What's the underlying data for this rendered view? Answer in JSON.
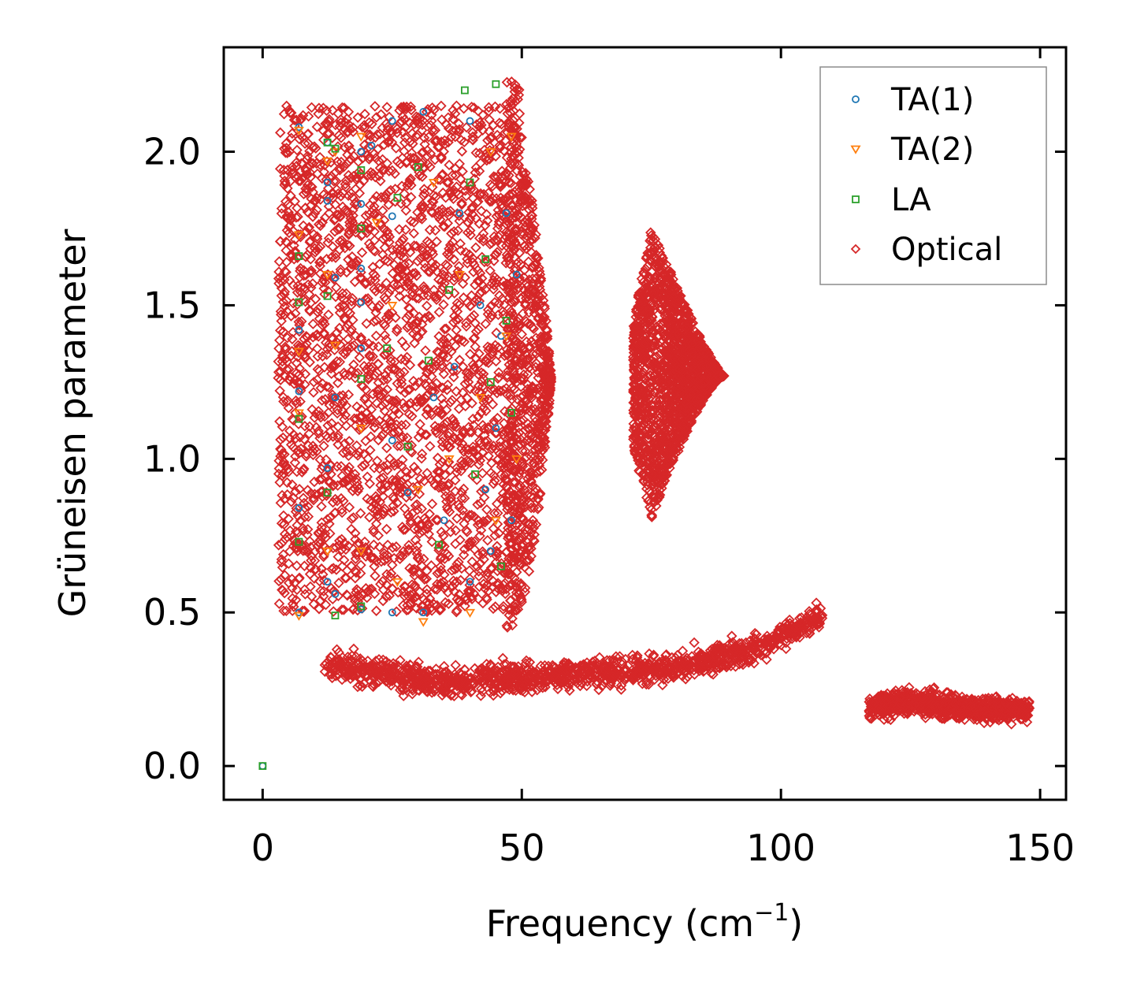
{
  "chart_data": {
    "type": "scatter",
    "title": "",
    "xlabel": "Frequency (cm",
    "xlabel_sup": "−1",
    "xlabel_end": ")",
    "ylabel": "Grüneisen parameter",
    "xlim": [
      -7.5,
      155
    ],
    "ylim": [
      -0.11,
      2.34
    ],
    "xticks": [
      0,
      50,
      100,
      150
    ],
    "xtick_labels": [
      "0",
      "50",
      "100",
      "150"
    ],
    "yticks": [
      0.0,
      0.5,
      1.0,
      1.5,
      2.0
    ],
    "ytick_labels": [
      "0.0",
      "0.5",
      "1.0",
      "1.5",
      "2.0"
    ],
    "grid": false,
    "legend_position": "top-right",
    "series": [
      {
        "name": "TA(1)",
        "marker": "circle",
        "color": "#1f77b4",
        "points": [
          [
            0,
            0
          ],
          [
            7,
            2.08
          ],
          [
            7,
            1.42
          ],
          [
            7,
            1.22
          ],
          [
            7,
            0.84
          ],
          [
            7,
            0.5
          ],
          [
            12.5,
            2.03
          ],
          [
            12.5,
            1.9
          ],
          [
            12.5,
            1.84
          ],
          [
            12.5,
            0.97
          ],
          [
            12.5,
            0.6
          ],
          [
            14,
            1.59
          ],
          [
            14,
            1.2
          ],
          [
            14,
            0.56
          ],
          [
            19,
            2.0
          ],
          [
            19,
            1.83
          ],
          [
            19,
            1.62
          ],
          [
            19,
            1.51
          ],
          [
            19,
            1.36
          ],
          [
            19,
            0.51
          ],
          [
            21,
            2.02
          ],
          [
            25,
            2.1
          ],
          [
            25,
            1.79
          ],
          [
            25,
            1.06
          ],
          [
            25,
            0.5
          ],
          [
            28,
            0.89
          ],
          [
            31,
            2.13
          ],
          [
            31,
            0.5
          ],
          [
            33,
            1.2
          ],
          [
            35,
            0.8
          ],
          [
            37,
            1.3
          ],
          [
            38,
            1.8
          ],
          [
            40,
            2.1
          ],
          [
            40,
            0.6
          ],
          [
            42,
            1.5
          ],
          [
            43,
            0.9
          ],
          [
            44,
            0.7
          ],
          [
            45,
            1.1
          ],
          [
            46,
            1.4
          ],
          [
            47,
            1.8
          ],
          [
            48,
            0.8
          ],
          [
            49,
            1.6
          ]
        ]
      },
      {
        "name": "TA(2)",
        "marker": "triangle",
        "color": "#ff7f0e",
        "points": [
          [
            7,
            2.07
          ],
          [
            7,
            1.73
          ],
          [
            7,
            1.35
          ],
          [
            7,
            1.15
          ],
          [
            7,
            0.49
          ],
          [
            12.5,
            1.97
          ],
          [
            12.5,
            1.6
          ],
          [
            12.5,
            0.7
          ],
          [
            14,
            2.0
          ],
          [
            14,
            1.37
          ],
          [
            19,
            2.05
          ],
          [
            19,
            1.1
          ],
          [
            19,
            0.7
          ],
          [
            22,
            1.77
          ],
          [
            25,
            1.5
          ],
          [
            26,
            0.6
          ],
          [
            30,
            0.9
          ],
          [
            31,
            0.47
          ],
          [
            33,
            1.9
          ],
          [
            36,
            1.0
          ],
          [
            38,
            1.6
          ],
          [
            40,
            0.5
          ],
          [
            42,
            1.2
          ],
          [
            44,
            2.0
          ],
          [
            45,
            0.8
          ],
          [
            47,
            1.4
          ],
          [
            48,
            2.05
          ],
          [
            49,
            1.0
          ]
        ]
      },
      {
        "name": "LA",
        "marker": "square",
        "color": "#2ca02c",
        "points": [
          [
            0,
            0
          ],
          [
            7,
            1.66
          ],
          [
            7,
            1.51
          ],
          [
            7,
            1.13
          ],
          [
            7,
            0.73
          ],
          [
            12.5,
            2.03
          ],
          [
            12.5,
            1.53
          ],
          [
            12.5,
            0.89
          ],
          [
            14,
            2.01
          ],
          [
            14,
            0.49
          ],
          [
            19,
            1.94
          ],
          [
            19,
            1.75
          ],
          [
            19,
            1.26
          ],
          [
            19,
            0.52
          ],
          [
            24,
            1.36
          ],
          [
            26,
            1.85
          ],
          [
            28,
            1.04
          ],
          [
            30,
            1.95
          ],
          [
            32,
            1.32
          ],
          [
            34,
            0.72
          ],
          [
            36,
            1.55
          ],
          [
            39,
            2.2
          ],
          [
            40,
            1.9
          ],
          [
            41,
            0.95
          ],
          [
            43,
            1.65
          ],
          [
            44,
            1.25
          ],
          [
            45,
            2.22
          ],
          [
            46,
            0.65
          ],
          [
            47,
            1.45
          ],
          [
            48,
            1.15
          ]
        ]
      },
      {
        "name": "Optical",
        "marker": "diamond",
        "color": "#d62728",
        "groups": [
          {
            "x": [
              3,
              50
            ],
            "y": [
              0.5,
              2.15
            ],
            "count": 2600
          },
          {
            "x": [
              47,
              50
            ],
            "y": [
              0.45,
              2.23
            ],
            "count": 250
          },
          {
            "x": [
              50,
              55.7
            ],
            "y_center": 1.26,
            "y_half_width": [
              0.72,
              0.0
            ],
            "count": 450
          },
          {
            "x": [
              71.5,
              89
            ],
            "y_center": 1.27,
            "y_top": 1.76,
            "y_bottom": 0.8,
            "peak_x": 75,
            "count": 1900
          },
          {
            "x": [
              12,
              108
            ],
            "y_curve": [
              [
                12,
                0.33
              ],
              [
                35,
                0.27
              ],
              [
                60,
                0.3
              ],
              [
                80,
                0.32
              ],
              [
                95,
                0.38
              ],
              [
                108,
                0.49
              ]
            ],
            "spread": 0.045,
            "count": 1300
          },
          {
            "x": [
              117,
              148
            ],
            "y_curve": [
              [
                117,
                0.19
              ],
              [
                125,
                0.21
              ],
              [
                135,
                0.19
              ],
              [
                147,
                0.18
              ]
            ],
            "spread": 0.038,
            "count": 850
          },
          {
            "x": [
              3,
              9
            ],
            "y": [
              0.73,
              1.35
            ],
            "count": 12
          }
        ]
      }
    ]
  }
}
